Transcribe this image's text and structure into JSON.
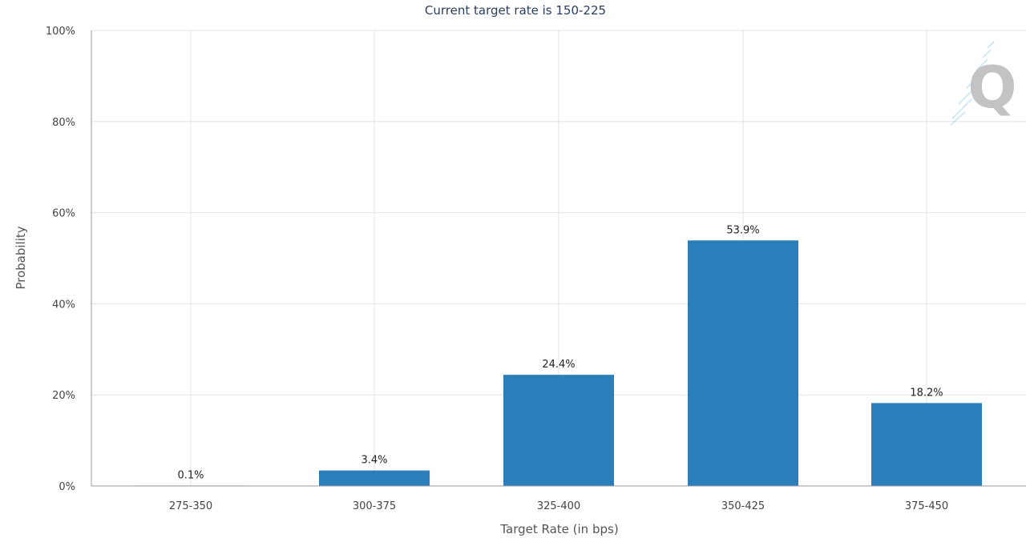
{
  "chart_data": {
    "type": "bar",
    "subtitle": "Current target rate is 150-225",
    "xlabel": "Target Rate (in bps)",
    "ylabel": "Probability",
    "categories": [
      "275-350",
      "300-375",
      "325-400",
      "350-425",
      "375-450"
    ],
    "values": [
      0.1,
      3.4,
      24.4,
      53.9,
      18.2
    ],
    "data_labels": [
      "0.1%",
      "3.4%",
      "24.4%",
      "53.9%",
      "18.2%"
    ],
    "y_ticks": [
      "0%",
      "20%",
      "40%",
      "60%",
      "80%",
      "100%"
    ],
    "ylim": [
      0,
      100
    ],
    "grid": true,
    "bar_color": "#2a7fba",
    "watermark": "Q"
  }
}
